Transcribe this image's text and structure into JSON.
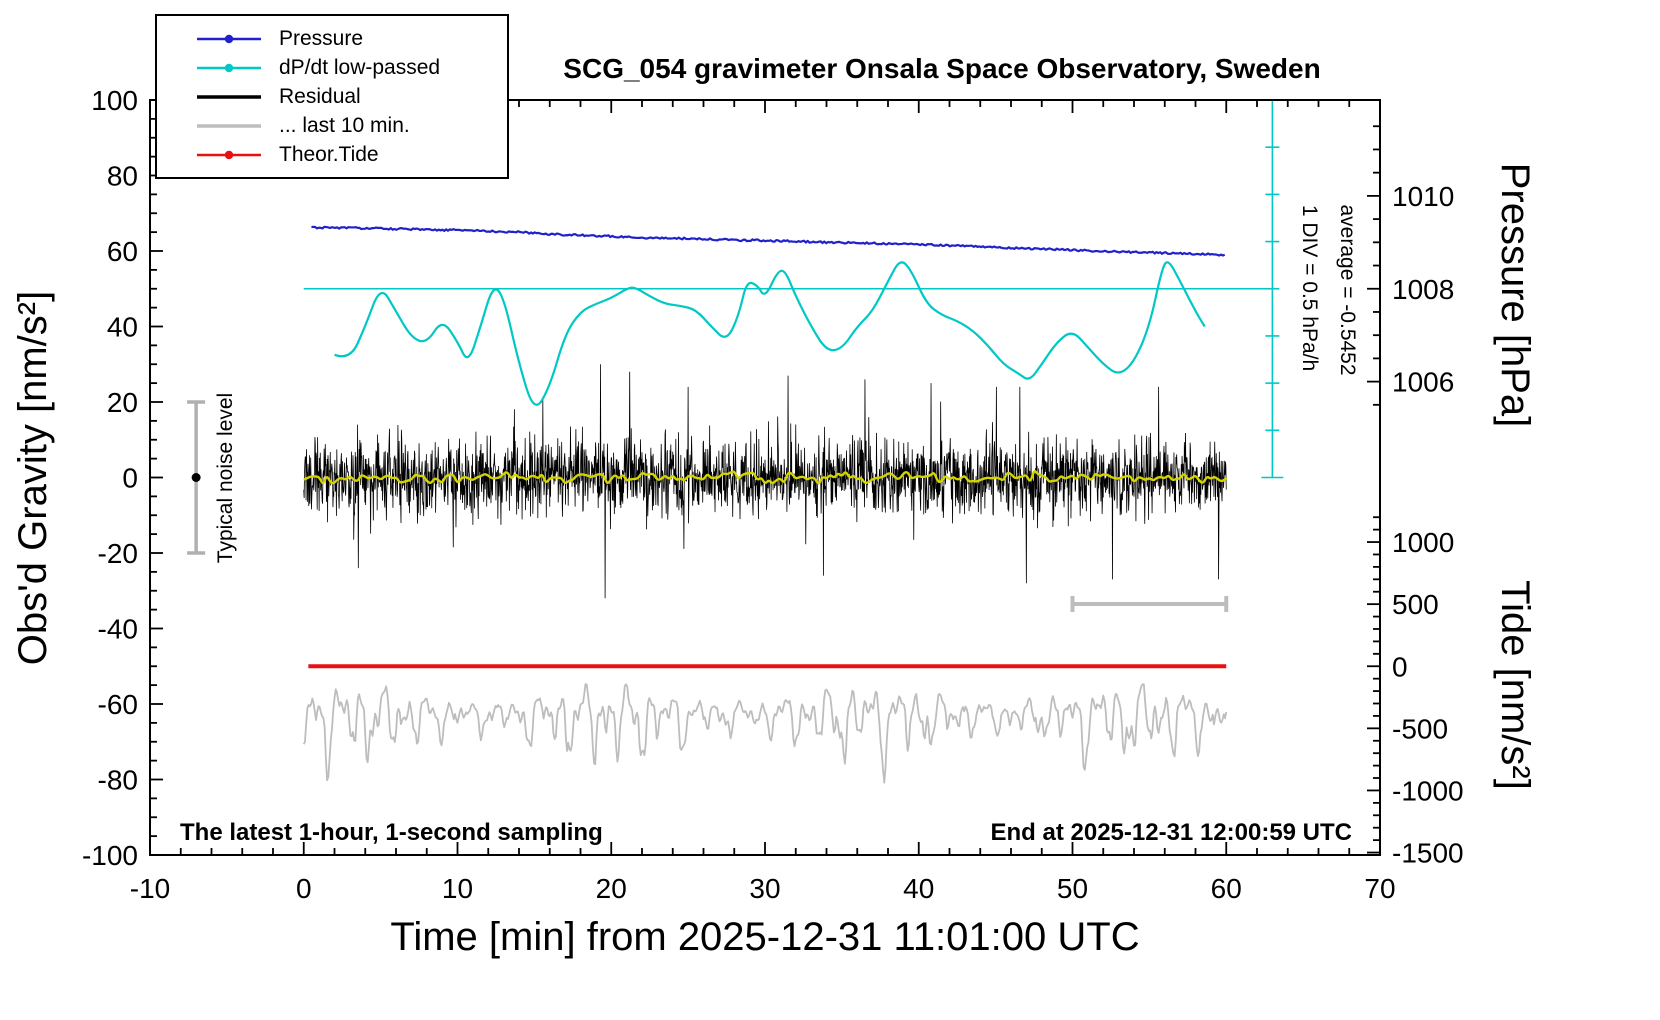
{
  "header": {
    "title": "SCG_054 gravimeter Onsala Space Observatory, Sweden"
  },
  "legend": {
    "items": [
      {
        "label": "Pressure",
        "color": "#2121cc",
        "dot": true,
        "width": 2.4
      },
      {
        "label": "dP/dt low-passed",
        "color": "#00c8c4",
        "dot": true,
        "width": 2.4
      },
      {
        "label": "Residual",
        "color": "#000000",
        "dot": false,
        "width": 3.6
      },
      {
        "label": "... last 10 min.",
        "color": "#bdbdbd",
        "dot": false,
        "width": 3.6
      },
      {
        "label": "Theor.Tide",
        "color": "#e81010",
        "dot": true,
        "width": 2.4
      }
    ]
  },
  "footer": {
    "left": "The latest 1-hour, 1-second sampling",
    "right": "End at 2025-12-31 12:00:59 UTC"
  },
  "chart_data": {
    "type": "line",
    "title": "SCG_054 gravimeter Onsala Space Observatory, Sweden",
    "xlabel": "Time [min] from 2025-12-31 11:01:00 UTC",
    "x_range": [
      -10,
      70
    ],
    "x_ticks": [
      -10,
      0,
      10,
      20,
      30,
      40,
      50,
      60,
      70
    ],
    "x_minor": 2,
    "left_axis": {
      "label": "Obs'd Gravity [nm/s²]",
      "range": [
        -100,
        100
      ],
      "ticks": [
        -100,
        -80,
        -60,
        -40,
        -20,
        0,
        20,
        40,
        60,
        80,
        100
      ],
      "minor": 5
    },
    "right_axis_pressure": {
      "label": "Pressure [hPa]",
      "tick_values": [
        1010,
        1008,
        1006
      ],
      "gravity_of_1008": 50,
      "gravity_per_hPa": 12.3
    },
    "right_axis_tide": {
      "label": "Tide [nm/s²]",
      "tick_values": [
        1000,
        500,
        0,
        -500,
        -1000,
        -1500
      ],
      "gravity_of_0": -50,
      "gravity_per_unit": 0.0329
    },
    "annotations": {
      "div_scale": "1 DIV = 0.5 hPa/h",
      "average": "average = -0.5452",
      "noise_level": "Typical noise level"
    },
    "series": {
      "pressure": {
        "name": "Pressure",
        "color": "#2121cc",
        "units": "hPa",
        "x": [
          0.5,
          3,
          6,
          9,
          10,
          12,
          14,
          16,
          18,
          20,
          22,
          24,
          26,
          28,
          30,
          32,
          34,
          36,
          38,
          40,
          42,
          44,
          46,
          48,
          50,
          52,
          54,
          56,
          58,
          59,
          60
        ],
        "hPa": [
          1009.32,
          1009.31,
          1009.29,
          1009.26,
          1009.27,
          1009.24,
          1009.22,
          1009.18,
          1009.15,
          1009.13,
          1009.1,
          1009.09,
          1009.07,
          1009.05,
          1009.04,
          1009.02,
          1009.0,
          1008.99,
          1008.97,
          1008.96,
          1008.93,
          1008.91,
          1008.88,
          1008.86,
          1008.83,
          1008.81,
          1008.79,
          1008.77,
          1008.75,
          1008.74,
          1008.73
        ]
      },
      "dpdt_lowpassed": {
        "name": "dP/dt low-passed",
        "color": "#00c8c4",
        "units": "hPa/h",
        "reference_gravity": 50,
        "gravity_per_hPa_per_h": 25,
        "reference_hPa_per_h": 0,
        "average_hPa_per_h": -0.5452,
        "x": [
          2,
          3,
          4,
          5,
          6,
          7,
          8,
          9,
          10,
          10.7,
          11.5,
          12.3,
          13,
          14,
          15,
          16,
          17,
          18,
          19,
          20,
          21,
          21.5,
          22.5,
          23.5,
          24.5,
          25.5,
          26.5,
          27.5,
          28.3,
          28.8,
          29.5,
          30,
          30.8,
          31.3,
          32,
          33,
          34,
          35,
          36,
          37,
          38,
          38.8,
          39.5,
          40.5,
          41.5,
          42.5,
          43.5,
          44.5,
          45.5,
          46.5,
          47.2,
          48,
          49,
          50,
          51,
          52,
          53,
          54,
          55,
          55.8,
          56.2,
          57,
          58,
          58.6
        ],
        "hPa_per_h": [
          -0.7,
          -0.76,
          -0.4,
          0.04,
          -0.24,
          -0.52,
          -0.58,
          -0.32,
          -0.56,
          -0.8,
          -0.4,
          0.04,
          -0.08,
          -0.8,
          -1.32,
          -1.04,
          -0.48,
          -0.24,
          -0.16,
          -0.1,
          0.0,
          0.02,
          -0.08,
          -0.16,
          -0.18,
          -0.22,
          -0.4,
          -0.56,
          -0.28,
          0.08,
          0.04,
          -0.1,
          0.18,
          0.2,
          -0.08,
          -0.4,
          -0.66,
          -0.64,
          -0.4,
          -0.24,
          0.08,
          0.32,
          0.2,
          -0.16,
          -0.28,
          -0.34,
          -0.44,
          -0.6,
          -0.8,
          -0.9,
          -0.98,
          -0.8,
          -0.56,
          -0.44,
          -0.62,
          -0.8,
          -0.92,
          -0.78,
          -0.4,
          0.2,
          0.32,
          0.08,
          -0.24,
          -0.4
        ]
      },
      "residual": {
        "name": "Residual",
        "color": "#000000",
        "units": "nm/s²",
        "x_range": [
          0,
          60
        ],
        "mean": 0,
        "typical_amplitude": 14,
        "spikes": [
          [
            19.3,
            30
          ],
          [
            19.6,
            -32
          ],
          [
            21.2,
            28
          ],
          [
            25.0,
            24
          ],
          [
            31.5,
            27
          ],
          [
            33.8,
            -26
          ],
          [
            36.5,
            26
          ],
          [
            40.8,
            25
          ],
          [
            47.0,
            -28
          ],
          [
            52.6,
            -27
          ],
          [
            55.6,
            24
          ],
          [
            59.5,
            -27
          ]
        ]
      },
      "residual_lowpassed": {
        "name": "Residual low-passed",
        "color": "#d4d400",
        "units": "nm/s²",
        "x_range": [
          0,
          60
        ],
        "mean": 0,
        "typical_amplitude": 2
      },
      "theor_tide": {
        "name": "Theor.Tide",
        "color": "#e81010",
        "units": "nm/s² (tide axis)",
        "x_range": [
          0.3,
          60
        ],
        "tide_value": 0
      },
      "last10_trace": {
        "name": "... last 10 min.",
        "color": "#bdbdbd",
        "units": "nm/s² (tide axis)",
        "x_range": [
          0,
          60
        ],
        "center_tide": -380,
        "envelope_tide": [
          -1080,
          -145
        ]
      }
    },
    "markers": {
      "noise_bar": {
        "x": -7,
        "gravity_range": [
          -20,
          20
        ]
      },
      "last10_bar": {
        "x_range": [
          50,
          60
        ],
        "gravity": -33.5
      },
      "div_scale_bar": {
        "x": 63,
        "gravity_range": [
          0,
          100
        ],
        "div_gravity": 12.5
      }
    }
  }
}
